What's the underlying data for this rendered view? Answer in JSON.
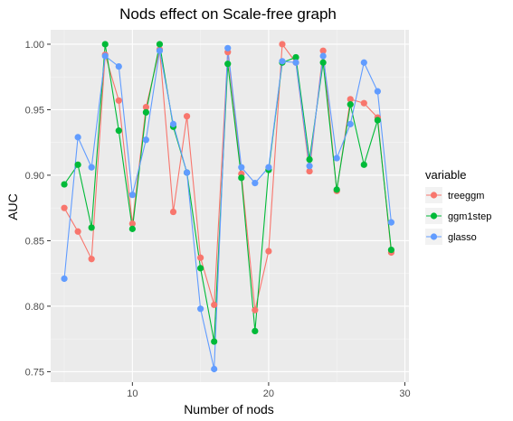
{
  "chart_data": {
    "type": "line",
    "title": "Nods effect on Scale-free graph",
    "xlabel": "Number of nods",
    "ylabel": "AUC",
    "xlim": [
      4,
      30.3
    ],
    "ylim": [
      0.742,
      1.011
    ],
    "xticks": [
      10,
      20,
      30
    ],
    "yticks": [
      0.75,
      0.8,
      0.85,
      0.9,
      0.95,
      1.0
    ],
    "ytick_labels": [
      "0.75",
      "0.80",
      "0.85",
      "0.90",
      "0.95",
      "1.00"
    ],
    "grid": true,
    "legend_title": "variable",
    "legend_position": "right",
    "x": [
      5,
      6,
      7,
      8,
      9,
      10,
      11,
      12,
      13,
      14,
      15,
      16,
      17,
      18,
      19,
      20,
      21,
      22,
      23,
      24,
      25,
      26,
      27,
      28,
      29
    ],
    "series": [
      {
        "name": "treeggm",
        "color": "#F8766D",
        "values": [
          0.875,
          0.857,
          0.836,
          0.992,
          0.957,
          0.863,
          0.952,
          0.996,
          0.872,
          0.945,
          0.837,
          0.801,
          0.994,
          0.901,
          0.797,
          0.842,
          1.0,
          0.986,
          0.903,
          0.995,
          0.888,
          0.958,
          0.955,
          0.944,
          0.841
        ]
      },
      {
        "name": "ggm1step",
        "color": "#00BA38",
        "values": [
          0.893,
          0.908,
          0.86,
          1.0,
          0.934,
          0.859,
          0.948,
          1.0,
          0.937,
          0.902,
          0.829,
          0.773,
          0.985,
          0.898,
          0.781,
          0.904,
          0.986,
          0.99,
          0.912,
          0.986,
          0.889,
          0.954,
          0.908,
          0.942,
          0.843
        ]
      },
      {
        "name": "glasso",
        "color": "#619CFF",
        "values": [
          0.821,
          0.929,
          0.906,
          0.991,
          0.983,
          0.885,
          0.927,
          0.995,
          0.939,
          0.902,
          0.798,
          0.752,
          0.997,
          0.906,
          0.894,
          0.906,
          0.987,
          0.986,
          0.907,
          0.991,
          0.913,
          0.939,
          0.986,
          0.964,
          0.864
        ]
      }
    ]
  }
}
